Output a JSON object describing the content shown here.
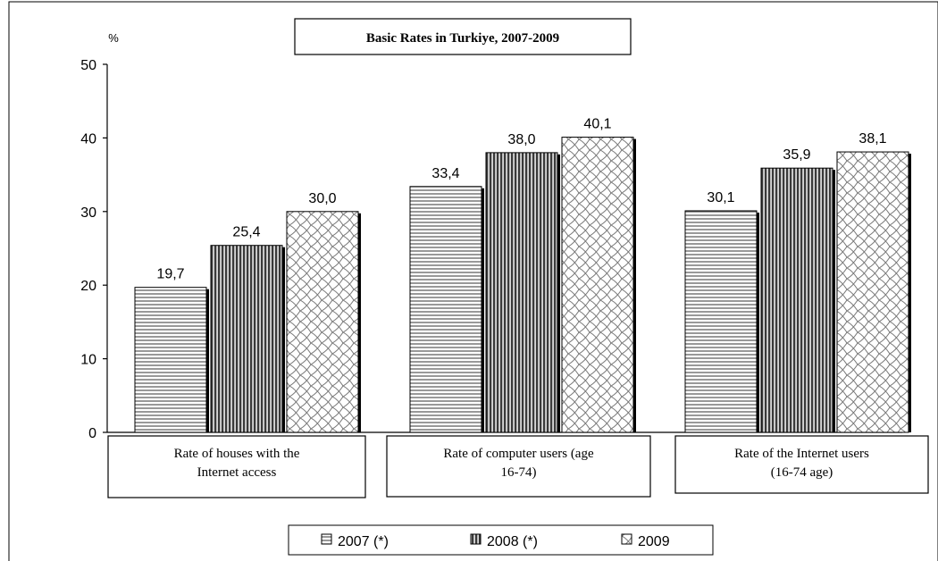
{
  "chart_data": {
    "type": "bar",
    "title": "Basic Rates in Turkiye, 2007-2009",
    "ylabel": "%",
    "ylim": [
      0,
      50
    ],
    "yticks": [
      0,
      10,
      20,
      30,
      40,
      50
    ],
    "categories": [
      [
        "Rate of houses with  the",
        "Internet access"
      ],
      [
        "Rate of computer users (age",
        "16-74)"
      ],
      [
        "Rate of the Internet users",
        "(16-74 age)"
      ]
    ],
    "series": [
      {
        "name": "2007 (*)",
        "values": [
          19.7,
          33.4,
          30.1
        ],
        "labels": [
          "19,7",
          "33,4",
          "30,1"
        ],
        "pattern": "horizontal-lines"
      },
      {
        "name": "2008 (*)",
        "values": [
          25.4,
          38.0,
          35.9
        ],
        "labels": [
          "25,4",
          "38,0",
          "35,9"
        ],
        "pattern": "vertical-lines"
      },
      {
        "name": "2009",
        "values": [
          30.0,
          40.1,
          38.1
        ],
        "labels": [
          "30,0",
          "40,1",
          "38,1"
        ],
        "pattern": "crosshatch"
      }
    ],
    "grid": false,
    "legend_position": "bottom"
  }
}
